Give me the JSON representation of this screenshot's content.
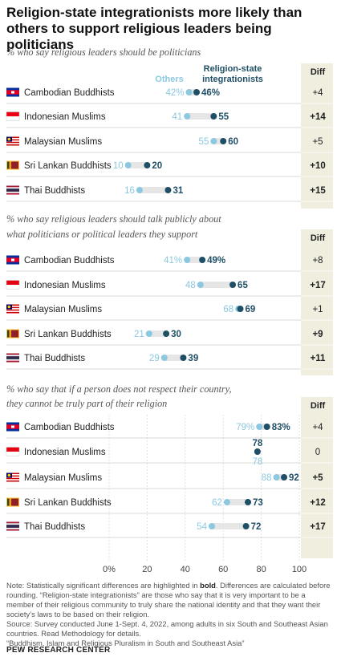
{
  "title": "Religion-state integrationists more likely than others to support religious leaders being politicians",
  "colors": {
    "others": "#8cc8e0",
    "integrationists": "#1f4f66",
    "bar": "#e6e6e6",
    "diff_bg": "#f0eedf"
  },
  "legend": {
    "others": "Others",
    "integrationists": "Religion-state integrationists"
  },
  "diff_header": "Diff",
  "chart_data": [
    {
      "type": "dot",
      "subtitle": "% who say religious leaders should be politicians",
      "categories": [
        "Cambodian Buddhists",
        "Indonesian Muslims",
        "Malaysian Muslims",
        "Sri Lankan Buddhists",
        "Thai Buddhists"
      ],
      "series": [
        {
          "name": "Others",
          "values": [
            42,
            41,
            55,
            10,
            16
          ]
        },
        {
          "name": "Religion-state integrationists",
          "values": [
            46,
            55,
            60,
            20,
            31
          ]
        }
      ],
      "diff": [
        "+4",
        "+14",
        "+5",
        "+10",
        "+15"
      ],
      "diff_bold": [
        false,
        true,
        false,
        true,
        true
      ],
      "xlim": [
        0,
        100
      ]
    },
    {
      "type": "dot",
      "subtitle": "% who say religious leaders should talk publicly about what politicians or political leaders they support",
      "categories": [
        "Cambodian Buddhists",
        "Indonesian Muslims",
        "Malaysian Muslims",
        "Sri Lankan Buddhists",
        "Thai Buddhists"
      ],
      "series": [
        {
          "name": "Others",
          "values": [
            41,
            48,
            68,
            21,
            29
          ]
        },
        {
          "name": "Religion-state integrationists",
          "values": [
            49,
            65,
            69,
            30,
            39
          ]
        }
      ],
      "diff": [
        "+8",
        "+17",
        "+1",
        "+9",
        "+11"
      ],
      "diff_bold": [
        false,
        true,
        false,
        true,
        true
      ],
      "xlim": [
        0,
        100
      ]
    },
    {
      "type": "dot",
      "subtitle": "% who say that if a person does not respect their country, they cannot be truly part of their religion",
      "categories": [
        "Cambodian Buddhists",
        "Indonesian Muslims",
        "Malaysian Muslims",
        "Sri Lankan Buddhists",
        "Thai Buddhists"
      ],
      "series": [
        {
          "name": "Others",
          "values": [
            79,
            78,
            88,
            62,
            54
          ]
        },
        {
          "name": "Religion-state integrationists",
          "values": [
            83,
            78,
            92,
            73,
            72
          ]
        }
      ],
      "diff": [
        "+4",
        "0",
        "+5",
        "+12",
        "+17"
      ],
      "diff_bold": [
        false,
        false,
        true,
        true,
        true
      ],
      "xlim": [
        0,
        100
      ],
      "xticks": [
        "0%",
        "20",
        "40",
        "60",
        "80",
        "100"
      ]
    }
  ],
  "notes": {
    "note_prefix": "Note: Statistically significant differences are highlighted in ",
    "note_bold": "bold",
    "note_rest": ". Differences are calculated before rounding. “Religion-state integrationists” are those who say that it is very important to be a member of their religious community to truly share the national identity and that they want their society’s laws to be based on their religion.",
    "source": "Source: Survey conducted June 1-Sept. 4, 2022, among adults in six South and Southeast Asian countries. Read Methodology for details.",
    "report": "“Buddhism, Islam and Religious Pluralism in South and Southeast Asia”"
  },
  "brand": "PEW RESEARCH CENTER"
}
